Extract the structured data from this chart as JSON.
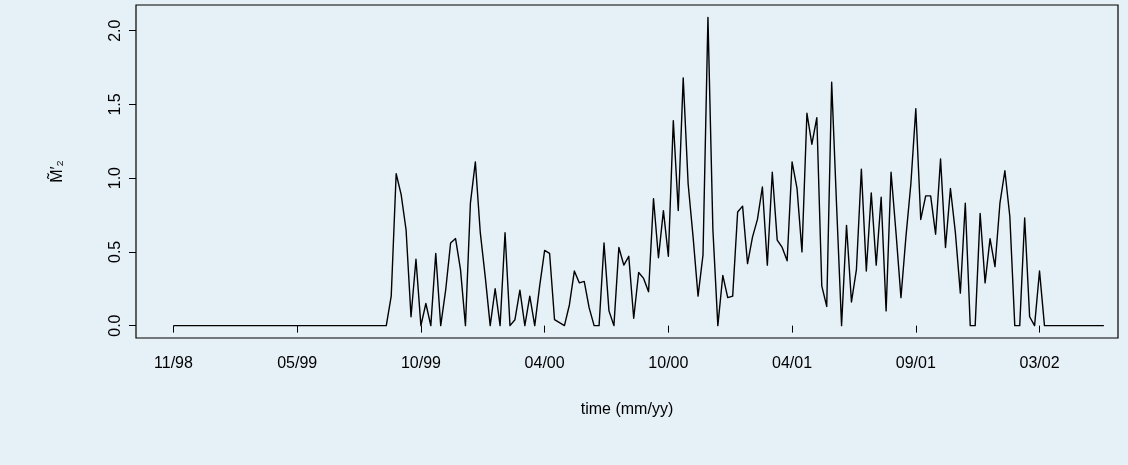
{
  "chart_data": {
    "type": "line",
    "xlabel": "time (mm/yy)",
    "ylabel": "M̃′₂",
    "xlim": [
      "1998-09-18",
      "2002-07-08"
    ],
    "xticks": [
      {
        "value": "1998-11-10",
        "label": "11/98"
      },
      {
        "value": "1999-05-04",
        "label": "05/99"
      },
      {
        "value": "1999-10-26",
        "label": "10/99"
      },
      {
        "value": "2000-04-18",
        "label": "04/00"
      },
      {
        "value": "2000-10-10",
        "label": "10/00"
      },
      {
        "value": "2001-04-03",
        "label": "04/01"
      },
      {
        "value": "2001-09-25",
        "label": "09/01"
      },
      {
        "value": "2002-03-19",
        "label": "03/02"
      }
    ],
    "ylim": [
      -0.084,
      2.174
    ],
    "yticks": [
      {
        "value": 0,
        "label": "0.0"
      },
      {
        "value": 0.5,
        "label": "0.5"
      },
      {
        "value": 1,
        "label": "1.0"
      },
      {
        "value": 1.5,
        "label": "1.5"
      },
      {
        "value": 2,
        "label": "2.0"
      }
    ],
    "series": [
      {
        "color": "#000000",
        "x": [
          "1998-11-10",
          "1999-09-07",
          "1999-09-14",
          "1999-09-21",
          "1999-09-28",
          "1999-10-05",
          "1999-10-12",
          "1999-10-19",
          "1999-10-26",
          "1999-11-02",
          "1999-11-09",
          "1999-11-16",
          "1999-11-23",
          "1999-11-30",
          "1999-12-07",
          "1999-12-14",
          "1999-12-21",
          "1999-12-28",
          "2000-01-04",
          "2000-01-11",
          "2000-01-18",
          "2000-01-25",
          "2000-02-01",
          "2000-02-08",
          "2000-02-15",
          "2000-02-22",
          "2000-02-29",
          "2000-03-07",
          "2000-03-14",
          "2000-03-21",
          "2000-03-28",
          "2000-04-04",
          "2000-04-11",
          "2000-04-18",
          "2000-04-25",
          "2000-05-02",
          "2000-05-09",
          "2000-05-16",
          "2000-05-23",
          "2000-05-30",
          "2000-06-06",
          "2000-06-13",
          "2000-06-20",
          "2000-06-27",
          "2000-07-04",
          "2000-07-11",
          "2000-07-18",
          "2000-07-25",
          "2000-08-01",
          "2000-08-08",
          "2000-08-15",
          "2000-08-22",
          "2000-08-29",
          "2000-09-05",
          "2000-09-12",
          "2000-09-19",
          "2000-09-26",
          "2000-10-03",
          "2000-10-10",
          "2000-10-17",
          "2000-10-24",
          "2000-10-31",
          "2000-11-07",
          "2000-11-14",
          "2000-11-21",
          "2000-11-28",
          "2000-12-05",
          "2000-12-12",
          "2000-12-19",
          "2000-12-26",
          "2001-01-02",
          "2001-01-09",
          "2001-01-16",
          "2001-01-23",
          "2001-01-30",
          "2001-02-06",
          "2001-02-13",
          "2001-02-20",
          "2001-02-27",
          "2001-03-06",
          "2001-03-13",
          "2001-03-20",
          "2001-03-27",
          "2001-04-03",
          "2001-04-10",
          "2001-04-17",
          "2001-04-24",
          "2001-05-01",
          "2001-05-08",
          "2001-05-15",
          "2001-05-22",
          "2001-05-29",
          "2001-06-05",
          "2001-06-12",
          "2001-06-19",
          "2001-06-26",
          "2001-07-03",
          "2001-07-10",
          "2001-07-17",
          "2001-07-24",
          "2001-07-31",
          "2001-08-07",
          "2001-08-14",
          "2001-08-21",
          "2001-08-28",
          "2001-09-04",
          "2001-09-11",
          "2001-09-18",
          "2001-09-25",
          "2001-10-02",
          "2001-10-09",
          "2001-10-16",
          "2001-10-23",
          "2001-10-30",
          "2001-11-06",
          "2001-11-13",
          "2001-11-20",
          "2001-11-27",
          "2001-12-04",
          "2001-12-11",
          "2001-12-18",
          "2001-12-25",
          "2002-01-01",
          "2002-01-08",
          "2002-01-15",
          "2002-01-22",
          "2002-01-29",
          "2002-02-05",
          "2002-02-12",
          "2002-02-19",
          "2002-02-26",
          "2002-03-05",
          "2002-03-12",
          "2002-03-19",
          "2002-03-26",
          "2002-06-18"
        ],
        "values": [
          0,
          0,
          0.2,
          1.03,
          0.89,
          0.65,
          0.06,
          0.45,
          0,
          0.15,
          0,
          0.49,
          0,
          0.24,
          0.56,
          0.59,
          0.38,
          0,
          0.83,
          1.11,
          0.63,
          0.33,
          0,
          0.25,
          0,
          0.63,
          0,
          0.04,
          0.24,
          0,
          0.2,
          0,
          0.27,
          0.51,
          0.49,
          0.04,
          0.02,
          0,
          0.14,
          0.37,
          0.29,
          0.3,
          0.12,
          0,
          0,
          0.56,
          0.1,
          0,
          0.53,
          0.41,
          0.47,
          0.05,
          0.36,
          0.32,
          0.23,
          0.86,
          0.46,
          0.78,
          0.47,
          1.39,
          0.78,
          1.68,
          0.96,
          0.6,
          0.2,
          0.48,
          2.09,
          0.65,
          0,
          0.34,
          0.19,
          0.2,
          0.77,
          0.81,
          0.42,
          0.6,
          0.72,
          0.94,
          0.41,
          1.04,
          0.58,
          0.53,
          0.44,
          1.11,
          0.93,
          0.5,
          1.44,
          1.23,
          1.41,
          0.27,
          0.13,
          1.65,
          0.81,
          0,
          0.68,
          0.16,
          0.38,
          1.06,
          0.37,
          0.9,
          0.41,
          0.87,
          0.1,
          1.04,
          0.63,
          0.19,
          0.6,
          0.96,
          1.47,
          0.72,
          0.88,
          0.88,
          0.62,
          1.13,
          0.53,
          0.93,
          0.63,
          0.22,
          0.83,
          0,
          0,
          0.76,
          0.29,
          0.59,
          0.4,
          0.83,
          1.05,
          0.74,
          0,
          0,
          0.73,
          0.06,
          0,
          0.37,
          0,
          0
        ]
      }
    ]
  }
}
